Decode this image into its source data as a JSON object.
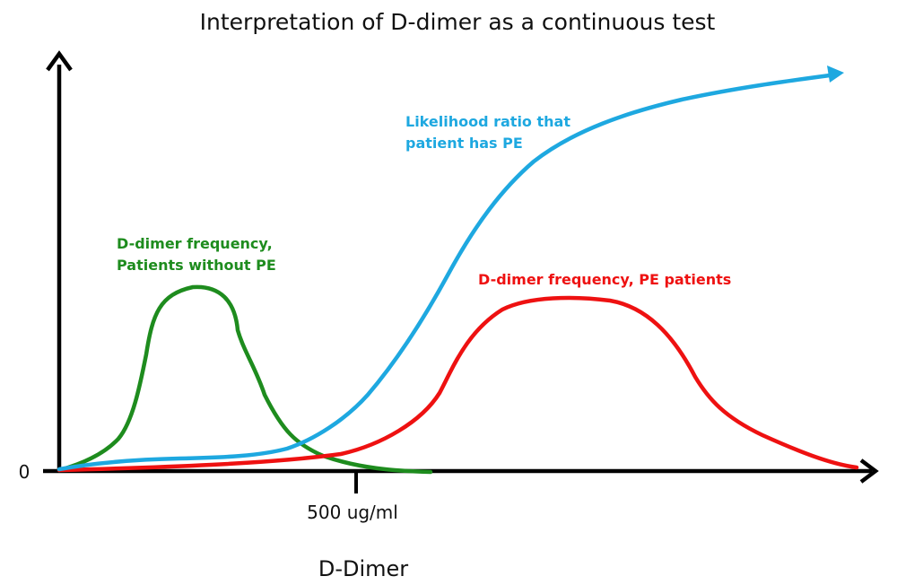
{
  "title": "Interpretation of D-dimer as a continuous test",
  "x_axis": {
    "label": "D-Dimer",
    "origin_label": "0",
    "threshold_label": "500 ug/ml"
  },
  "curves": {
    "no_pe": {
      "label_line1": "D-dimer frequency,",
      "label_line2": "Patients without PE",
      "color": "#1e8c1e"
    },
    "pe": {
      "label": "D-dimer frequency, PE patients",
      "color": "#ee1111"
    },
    "lr": {
      "label_line1": "Likelihood ratio that",
      "label_line2": "patient has PE",
      "color": "#1ea8e0"
    }
  },
  "axis_color": "#000000"
}
